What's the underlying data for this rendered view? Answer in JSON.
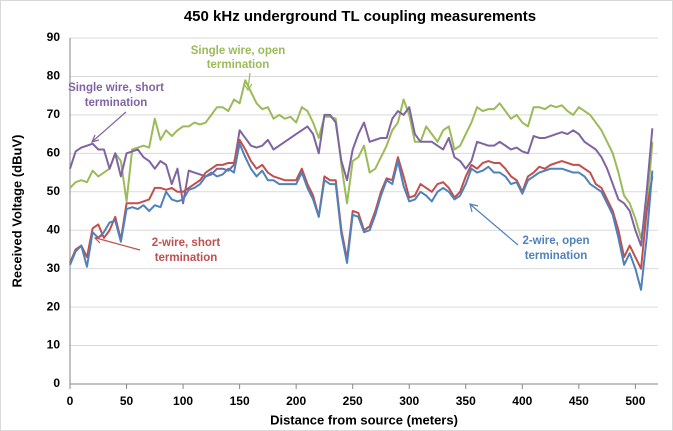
{
  "chart_data": {
    "type": "line",
    "title": "450 kHz underground TL coupling measurements",
    "x_label": "Distance from source (meters)",
    "y_label": "Received Voltage (dBuV)",
    "xlim": [
      0,
      520
    ],
    "xticks": [
      0,
      50,
      100,
      150,
      200,
      250,
      300,
      350,
      400,
      450,
      500
    ],
    "ylim": [
      0,
      90
    ],
    "yticks": [
      0,
      10,
      20,
      30,
      40,
      50,
      60,
      70,
      80,
      90
    ],
    "grid": true,
    "x": [
      0,
      5,
      10,
      15,
      20,
      25,
      30,
      35,
      40,
      45,
      50,
      55,
      60,
      65,
      70,
      75,
      80,
      85,
      90,
      95,
      100,
      105,
      110,
      115,
      120,
      125,
      130,
      135,
      140,
      145,
      150,
      155,
      160,
      165,
      170,
      175,
      180,
      185,
      190,
      195,
      200,
      205,
      210,
      215,
      220,
      225,
      230,
      235,
      240,
      245,
      250,
      255,
      260,
      265,
      270,
      275,
      280,
      285,
      290,
      295,
      300,
      305,
      310,
      315,
      320,
      325,
      330,
      335,
      340,
      345,
      350,
      355,
      360,
      365,
      370,
      375,
      380,
      385,
      390,
      395,
      400,
      405,
      410,
      415,
      420,
      425,
      430,
      435,
      440,
      445,
      450,
      455,
      460,
      465,
      470,
      475,
      480,
      485,
      490,
      495,
      500,
      505,
      510,
      515
    ],
    "series": [
      {
        "color": "#9bbb59",
        "values": [
          51,
          52.5,
          53,
          52.5,
          55.5,
          54,
          55,
          56,
          60,
          58,
          47.5,
          61,
          61.5,
          62,
          61.5,
          69,
          63.5,
          66,
          64.5,
          66,
          67,
          67,
          68,
          67.5,
          68,
          70,
          72,
          72,
          71,
          74,
          73,
          79,
          76,
          73,
          71.5,
          72,
          69,
          70,
          69,
          69.5,
          68,
          72,
          71,
          68,
          64,
          69.5,
          69.5,
          69,
          57,
          47,
          58,
          59,
          62,
          55,
          56,
          59,
          62,
          66,
          68,
          74,
          70,
          63,
          63,
          67,
          65,
          63,
          66,
          67,
          61,
          62,
          65,
          68,
          72,
          71,
          71.5,
          71.5,
          73,
          71,
          69,
          70,
          68,
          67,
          72,
          72,
          71.5,
          72.5,
          72,
          72.5,
          71,
          70,
          72,
          71,
          70,
          68,
          66,
          63,
          60,
          55,
          49,
          47,
          43,
          38,
          45,
          63
        ]
      },
      {
        "color": "#8064a2",
        "values": [
          56,
          60.5,
          61.5,
          62,
          62.5,
          61,
          61,
          56,
          60,
          54,
          60,
          60.5,
          61,
          59,
          58,
          56,
          58,
          57,
          52,
          56,
          47,
          55.5,
          55,
          54.5,
          54,
          54.5,
          56,
          56,
          55.5,
          57,
          66,
          64,
          62,
          61.5,
          62,
          63.5,
          61,
          62,
          63,
          64,
          65,
          66,
          67,
          65,
          60,
          70,
          70,
          68,
          58,
          53,
          61,
          65,
          68,
          63,
          63.5,
          64,
          64,
          69,
          71,
          70,
          72,
          65,
          63,
          63,
          63,
          62,
          61,
          64,
          59,
          58,
          56,
          58,
          63,
          62.5,
          62,
          62,
          63,
          62,
          61,
          61.5,
          60.5,
          60,
          64.5,
          64,
          64,
          64.5,
          65,
          65.5,
          65,
          66,
          65,
          63,
          62,
          61,
          59,
          56,
          52,
          48,
          47,
          45,
          40,
          36,
          50,
          66.5
        ]
      },
      {
        "color": "#c0504d",
        "values": [
          31.5,
          35,
          36,
          33,
          40.5,
          41.5,
          38,
          40,
          43.5,
          37.5,
          47,
          47,
          47,
          47.5,
          48,
          51,
          51,
          50.5,
          51,
          50,
          50,
          51,
          52,
          53,
          55,
          56,
          57,
          57,
          57.5,
          57.5,
          63.5,
          61,
          58,
          56,
          57,
          55,
          54,
          53.5,
          53,
          53,
          53,
          56,
          52,
          49,
          43.5,
          54,
          53,
          53,
          40,
          32.5,
          45,
          44.5,
          40,
          41,
          45,
          50,
          53.5,
          53,
          59,
          54,
          48.5,
          49,
          52,
          51,
          50,
          52,
          52.5,
          51,
          48.5,
          50,
          54,
          57,
          56,
          57.5,
          58,
          57.5,
          57.5,
          56,
          54,
          53,
          50,
          54,
          55,
          56.5,
          56,
          57,
          57.5,
          58,
          57.5,
          57,
          57,
          56,
          55,
          52,
          51,
          48,
          45,
          40,
          33,
          36,
          33,
          30,
          45,
          54
        ]
      },
      {
        "color": "#4f81bd",
        "values": [
          31,
          34.5,
          36,
          30.5,
          39.5,
          38,
          39.5,
          42,
          42.5,
          37,
          45.5,
          46,
          45.5,
          46.5,
          45,
          46.5,
          46,
          50,
          48,
          47.5,
          48,
          50.5,
          51,
          52,
          54,
          55,
          54,
          54.5,
          56,
          55,
          62.5,
          59,
          56,
          54,
          55.5,
          53,
          53,
          52,
          52,
          52,
          52,
          55,
          51,
          48,
          43.5,
          53,
          52,
          52,
          39,
          31.5,
          44,
          43.5,
          39.5,
          40,
          44,
          49,
          53,
          52,
          58,
          51.5,
          47.5,
          48,
          50,
          49,
          47.5,
          50,
          51,
          50,
          48,
          49,
          52,
          56,
          55,
          55.5,
          56.5,
          55,
          55,
          54,
          52,
          52.5,
          49.5,
          53,
          54,
          55,
          55.5,
          56,
          56,
          56,
          55.5,
          55,
          55,
          54,
          52,
          51,
          50,
          47,
          44,
          38,
          31,
          34,
          30,
          24.5,
          38,
          55.5
        ]
      }
    ],
    "annotations": [
      [
        "Single wire, open",
        "termination"
      ],
      [
        "Single wire, short",
        "termination"
      ],
      [
        "2-wire, short",
        "termination"
      ],
      [
        "2-wire, open",
        "termination"
      ]
    ]
  }
}
